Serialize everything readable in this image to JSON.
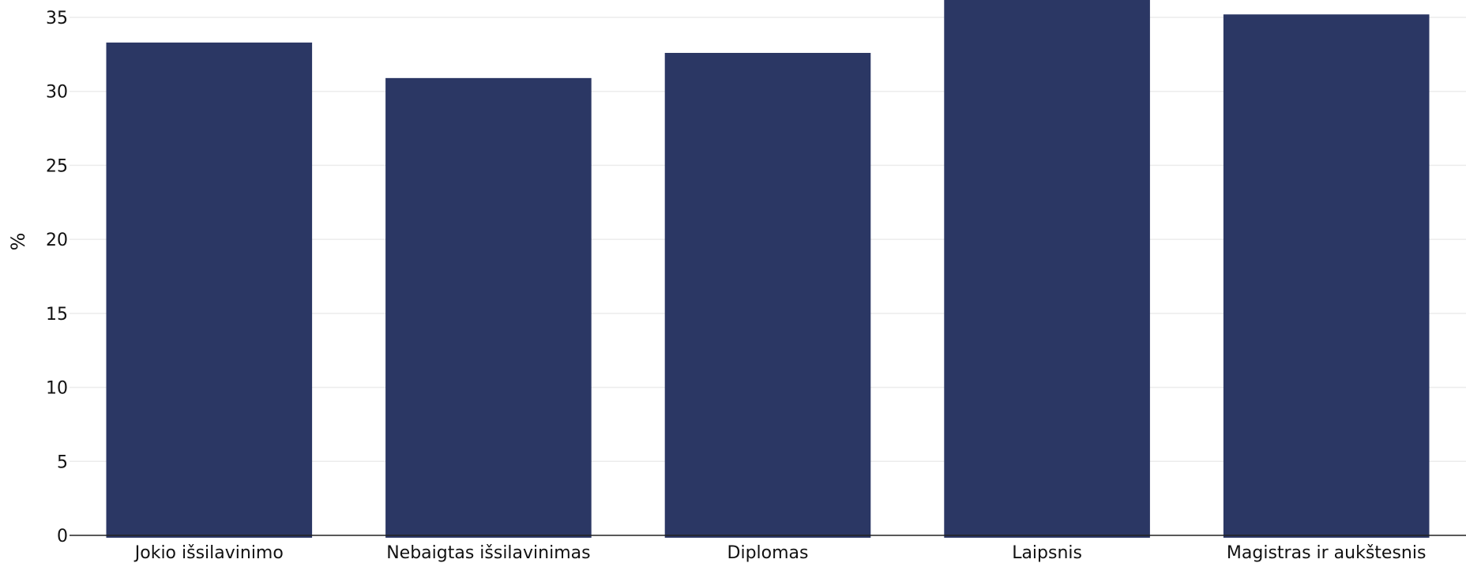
{
  "chart_data": {
    "type": "bar",
    "title": "",
    "xlabel": "",
    "ylabel": "%",
    "categories": [
      "Jokio išsilavinimo",
      "Nebaigtas išsilavinimas",
      "Diplomas",
      "Laipsnis",
      "Magistras ir aukštesnis"
    ],
    "values": [
      33.3,
      30.9,
      32.6,
      36.6,
      35.2
    ],
    "ylim": [
      0,
      35
    ],
    "yticks": [
      "0",
      "5",
      "10",
      "15",
      "20",
      "25",
      "30",
      "35"
    ],
    "grid": true,
    "legend": "none",
    "colors": {
      "bar": "#2b3764",
      "grid": "#ececec",
      "axis": "#222222",
      "text": "#111111"
    }
  }
}
